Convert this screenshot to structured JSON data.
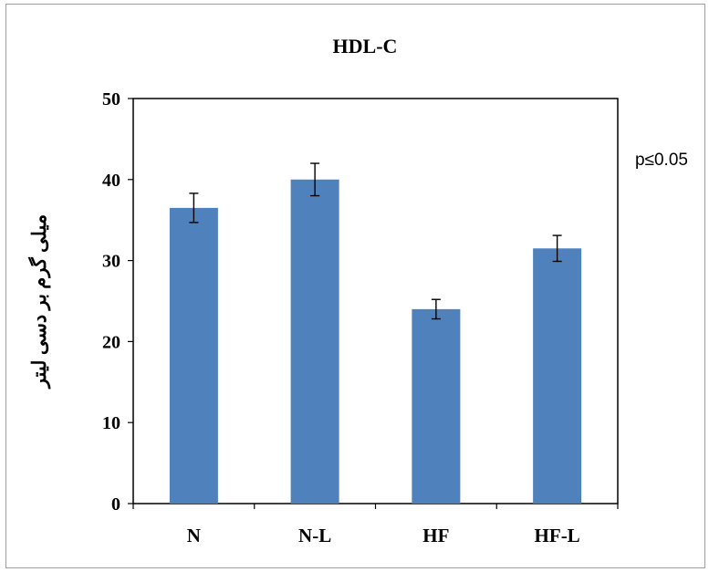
{
  "chart_data": {
    "type": "bar",
    "title": "HDL-C",
    "ylabel": "میلی گرم بر دسی لیتر",
    "xlabel": "",
    "categories": [
      "N",
      "N-L",
      "HF",
      "HF-L"
    ],
    "series": [
      {
        "values": [
          36.5,
          40.0,
          24.0,
          31.5
        ],
        "errors": [
          1.8,
          2.0,
          1.2,
          1.6
        ]
      }
    ],
    "ylim": [
      0,
      50
    ],
    "yticks": [
      0,
      10,
      20,
      30,
      40,
      50
    ],
    "grid": false,
    "bar_color": "#4f81bd",
    "annotation": "p≤0.05"
  }
}
